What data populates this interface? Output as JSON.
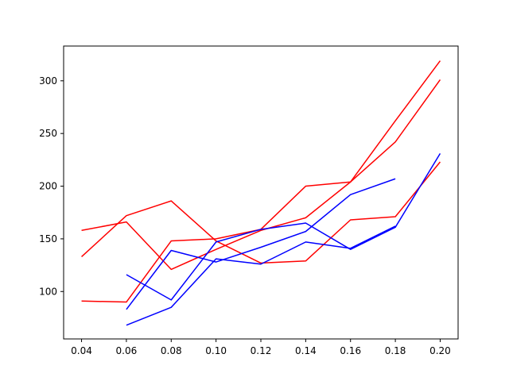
{
  "chart_data": {
    "type": "line",
    "title": "",
    "xlabel": "",
    "ylabel": "",
    "xlim": [
      0.032,
      0.208
    ],
    "ylim": [
      55,
      333
    ],
    "xticks": [
      0.04,
      0.06,
      0.08,
      0.1,
      0.12,
      0.14,
      0.16,
      0.18,
      0.2
    ],
    "xtick_labels": [
      "0.04",
      "0.06",
      "0.08",
      "0.10",
      "0.12",
      "0.14",
      "0.16",
      "0.18",
      "0.20"
    ],
    "yticks": [
      100,
      150,
      200,
      250,
      300
    ],
    "ytick_labels": [
      "100",
      "150",
      "200",
      "250",
      "300"
    ],
    "grid": false,
    "series": [
      {
        "color": "#ff0000",
        "points": [
          [
            0.04,
            158
          ],
          [
            0.06,
            166
          ],
          [
            0.08,
            121
          ],
          [
            0.1,
            140
          ],
          [
            0.12,
            158
          ],
          [
            0.14,
            170
          ],
          [
            0.16,
            204
          ],
          [
            0.18,
            262
          ],
          [
            0.2,
            319
          ]
        ]
      },
      {
        "color": "#ff0000",
        "points": [
          [
            0.04,
            133
          ],
          [
            0.06,
            172
          ],
          [
            0.08,
            186
          ],
          [
            0.1,
            148
          ],
          [
            0.12,
            127
          ],
          [
            0.14,
            129
          ],
          [
            0.16,
            168
          ],
          [
            0.18,
            171
          ],
          [
            0.2,
            223
          ]
        ]
      },
      {
        "color": "#ff0000",
        "points": [
          [
            0.04,
            91
          ],
          [
            0.06,
            90
          ],
          [
            0.08,
            148
          ],
          [
            0.1,
            150
          ],
          [
            0.12,
            159
          ],
          [
            0.14,
            200
          ],
          [
            0.16,
            204
          ],
          [
            0.18,
            242
          ],
          [
            0.2,
            301
          ]
        ]
      },
      {
        "color": "#0000ff",
        "points": [
          [
            0.06,
            116
          ],
          [
            0.08,
            92
          ],
          [
            0.1,
            147
          ],
          [
            0.12,
            159
          ],
          [
            0.14,
            165
          ],
          [
            0.16,
            140
          ],
          [
            0.18,
            161
          ],
          [
            0.2,
            231
          ]
        ]
      },
      {
        "color": "#0000ff",
        "points": [
          [
            0.06,
            68
          ],
          [
            0.08,
            85
          ],
          [
            0.1,
            131
          ],
          [
            0.12,
            126
          ],
          [
            0.14,
            147
          ],
          [
            0.16,
            141
          ],
          [
            0.18,
            162
          ]
        ]
      },
      {
        "color": "#0000ff",
        "points": [
          [
            0.06,
            83
          ],
          [
            0.08,
            139
          ],
          [
            0.1,
            128
          ],
          [
            0.12,
            142
          ],
          [
            0.14,
            157
          ],
          [
            0.16,
            192
          ],
          [
            0.18,
            207
          ]
        ]
      }
    ]
  }
}
